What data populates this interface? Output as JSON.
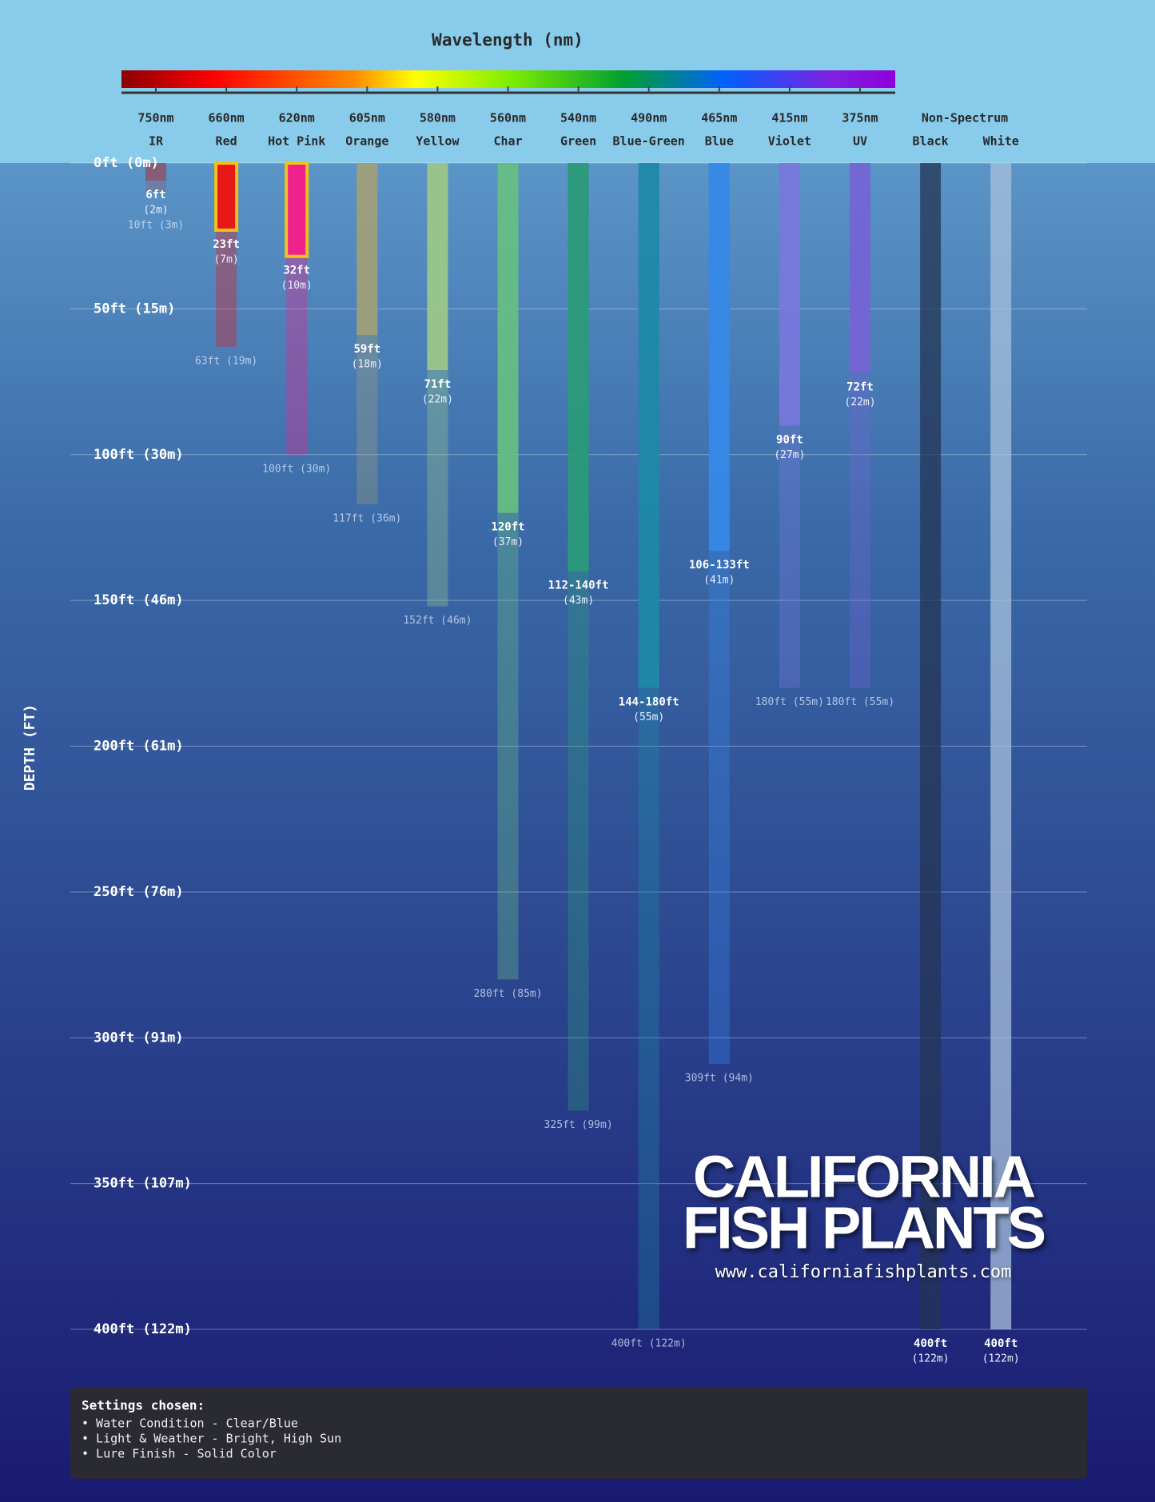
{
  "chart_data": {
    "type": "depth-bar",
    "title": "Wavelength (nm)",
    "y_label": "DEPTH (FT)",
    "group_label": "Non-Spectrum",
    "ylim": [
      0,
      400
    ],
    "yticks": [
      {
        "value": 0,
        "label": "0ft (0m)"
      },
      {
        "value": 50,
        "label": "50ft (15m)"
      },
      {
        "value": 100,
        "label": "100ft (30m)"
      },
      {
        "value": 150,
        "label": "150ft (46m)"
      },
      {
        "value": 200,
        "label": "200ft (61m)"
      },
      {
        "value": 250,
        "label": "250ft (76m)"
      },
      {
        "value": 300,
        "label": "300ft (91m)"
      },
      {
        "value": 350,
        "label": "350ft (107m)"
      },
      {
        "value": 400,
        "label": "400ft (122m)"
      }
    ],
    "grid": true,
    "series": [
      {
        "wavelength": "750nm",
        "name": "IR",
        "color": "#8a5a70",
        "visible": 6,
        "visible_label": "6ft",
        "visible_m_label": "(2m)",
        "max": 10,
        "max_label": "10ft (3m)"
      },
      {
        "wavelength": "660nm",
        "name": "Red",
        "color": "#e81818",
        "visible": 23,
        "visible_label": "23ft",
        "visible_m_label": "(7m)",
        "max": 63,
        "max_label": "63ft (19m)",
        "highlight": true
      },
      {
        "wavelength": "620nm",
        "name": "Hot Pink",
        "color": "#f0208c",
        "visible": 32,
        "visible_label": "32ft",
        "visible_m_label": "(10m)",
        "max": 100,
        "max_label": "100ft (30m)",
        "highlight": true
      },
      {
        "wavelength": "605nm",
        "name": "Orange",
        "color": "#a0a078",
        "visible": 59,
        "visible_label": "59ft",
        "visible_m_label": "(18m)",
        "max": 117,
        "max_label": "117ft (36m)"
      },
      {
        "wavelength": "580nm",
        "name": "Yellow",
        "color": "#9cc888",
        "visible": 71,
        "visible_label": "71ft",
        "visible_m_label": "(22m)",
        "max": 152,
        "max_label": "152ft (46m)"
      },
      {
        "wavelength": "560nm",
        "name": "Char",
        "color": "#66bf84",
        "visible": 120,
        "visible_label": "120ft",
        "visible_m_label": "(37m)",
        "max": 280,
        "max_label": "280ft (85m)"
      },
      {
        "wavelength": "540nm",
        "name": "Green",
        "color": "#2a9a78",
        "visible_min": 112,
        "visible": 140,
        "visible_label": "112-140ft",
        "visible_m_label": "(43m)",
        "max": 325,
        "max_label": "325ft (99m)"
      },
      {
        "wavelength": "490nm",
        "name": "Blue-Green",
        "color": "#1d8aa6",
        "visible_min": 144,
        "visible": 180,
        "visible_label": "144-180ft",
        "visible_m_label": "(55m)",
        "max": 400,
        "max_label": "400ft (122m)"
      },
      {
        "wavelength": "465nm",
        "name": "Blue",
        "color": "#3688e8",
        "visible_min": 106,
        "visible": 133,
        "visible_label": "106-133ft",
        "visible_m_label": "(41m)",
        "max": 309,
        "max_label": "309ft (94m)"
      },
      {
        "wavelength": "415nm",
        "name": "Violet",
        "color": "#7878dc",
        "visible": 90,
        "visible_label": "90ft",
        "visible_m_label": "(27m)",
        "max": 180,
        "max_label": "180ft (55m)"
      },
      {
        "wavelength": "375nm",
        "name": "UV",
        "color": "#7464d4",
        "visible": 72,
        "visible_label": "72ft",
        "visible_m_label": "(22m)",
        "max": 180,
        "max_label": "180ft (55m)"
      },
      {
        "name": "Black",
        "color": "#243454",
        "visible": 400,
        "visible_label": "400ft",
        "visible_m_label": "(122m)"
      },
      {
        "name": "White",
        "color": "#a8c0dc",
        "visible": 400,
        "visible_label": "400ft",
        "visible_m_label": "(122m)"
      }
    ]
  },
  "branding": {
    "line1": "CALIFORNIA",
    "line2": "FISH PLANTS",
    "url": "www.californiafishplants.com"
  },
  "settings": {
    "title": "Settings chosen:",
    "items": [
      "• Water Condition - Clear/Blue",
      "• Light & Weather - Bright, High Sun",
      "• Lure Finish - Solid Color"
    ]
  }
}
